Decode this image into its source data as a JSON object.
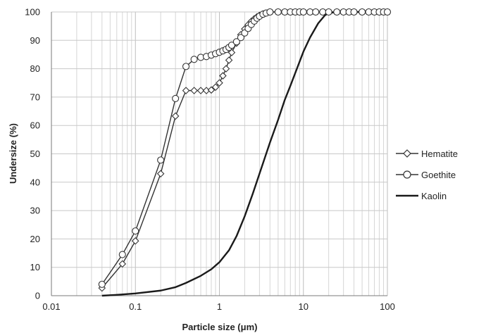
{
  "chart_data": {
    "type": "line",
    "title": "",
    "xlabel": "Particle size (μm)",
    "ylabel": "Undersize (%)",
    "x_scale": "log",
    "xlim": [
      0.01,
      100
    ],
    "ylim": [
      0,
      100
    ],
    "x_ticks": [
      "0.01",
      "0.1",
      "1",
      "10",
      "100"
    ],
    "y_ticks": [
      "0",
      "10",
      "20",
      "30",
      "40",
      "50",
      "60",
      "70",
      "80",
      "90",
      "100"
    ],
    "grid": true,
    "legend_position": "right",
    "series": [
      {
        "name": "Hematite",
        "marker": "diamond",
        "color": "#333333",
        "points": [
          [
            0.04,
            2.7
          ],
          [
            0.07,
            11.2
          ],
          [
            0.1,
            19.3
          ],
          [
            0.2,
            43.0
          ],
          [
            0.3,
            63.3
          ],
          [
            0.4,
            72.3
          ],
          [
            0.5,
            72.3
          ],
          [
            0.6,
            72.3
          ],
          [
            0.7,
            72.3
          ],
          [
            0.8,
            72.5
          ],
          [
            0.9,
            73.5
          ],
          [
            1.0,
            75.0
          ],
          [
            1.1,
            77.5
          ],
          [
            1.2,
            80.0
          ],
          [
            1.3,
            83.0
          ],
          [
            1.4,
            85.7
          ],
          [
            1.6,
            89.0
          ],
          [
            1.8,
            92.0
          ],
          [
            2.0,
            94.0
          ],
          [
            2.2,
            95.5
          ],
          [
            2.4,
            96.7
          ],
          [
            2.6,
            97.6
          ],
          [
            2.8,
            98.3
          ],
          [
            3.0,
            98.8
          ],
          [
            3.3,
            99.3
          ],
          [
            3.6,
            99.6
          ],
          [
            4,
            100
          ],
          [
            5,
            100
          ],
          [
            6,
            100
          ],
          [
            7,
            100
          ],
          [
            8,
            100
          ],
          [
            9,
            100
          ],
          [
            10,
            100
          ],
          [
            12,
            100
          ],
          [
            14,
            100
          ],
          [
            17,
            100
          ],
          [
            20,
            100
          ],
          [
            25,
            100
          ],
          [
            30,
            100
          ],
          [
            35,
            100
          ],
          [
            40,
            100
          ],
          [
            50,
            100
          ],
          [
            60,
            100
          ],
          [
            70,
            100
          ],
          [
            80,
            100
          ],
          [
            90,
            100
          ],
          [
            100,
            100
          ]
        ]
      },
      {
        "name": "Goethite",
        "marker": "circle",
        "color": "#333333",
        "points": [
          [
            0.04,
            4.0
          ],
          [
            0.07,
            14.5
          ],
          [
            0.1,
            22.8
          ],
          [
            0.2,
            47.8
          ],
          [
            0.3,
            69.5
          ],
          [
            0.4,
            80.8
          ],
          [
            0.5,
            83.3
          ],
          [
            0.6,
            84.0
          ],
          [
            0.7,
            84.3
          ],
          [
            0.8,
            84.8
          ],
          [
            0.9,
            85.3
          ],
          [
            1.0,
            85.8
          ],
          [
            1.1,
            86.3
          ],
          [
            1.2,
            86.8
          ],
          [
            1.3,
            87.5
          ],
          [
            1.4,
            88.3
          ],
          [
            1.6,
            89.5
          ],
          [
            1.8,
            91.0
          ],
          [
            2.0,
            92.6
          ],
          [
            2.2,
            94.2
          ],
          [
            2.4,
            95.6
          ],
          [
            2.6,
            96.8
          ],
          [
            2.8,
            97.8
          ],
          [
            3.0,
            98.5
          ],
          [
            3.3,
            99.2
          ],
          [
            3.6,
            99.6
          ],
          [
            4,
            100
          ],
          [
            5,
            100
          ],
          [
            6,
            100
          ],
          [
            7,
            100
          ],
          [
            8,
            100
          ],
          [
            9,
            100
          ],
          [
            10,
            100
          ],
          [
            12,
            100
          ],
          [
            14,
            100
          ],
          [
            17,
            100
          ],
          [
            20,
            100
          ],
          [
            25,
            100
          ],
          [
            30,
            100
          ],
          [
            35,
            100
          ],
          [
            40,
            100
          ],
          [
            50,
            100
          ],
          [
            60,
            100
          ],
          [
            70,
            100
          ],
          [
            80,
            100
          ],
          [
            90,
            100
          ],
          [
            100,
            100
          ]
        ]
      },
      {
        "name": "Kaolin",
        "marker": "none",
        "color": "#1a1a1a",
        "points": [
          [
            0.04,
            0.0
          ],
          [
            0.06,
            0.3
          ],
          [
            0.1,
            0.8
          ],
          [
            0.2,
            1.8
          ],
          [
            0.3,
            3.0
          ],
          [
            0.4,
            4.5
          ],
          [
            0.6,
            7.0
          ],
          [
            0.8,
            9.3
          ],
          [
            1.0,
            11.8
          ],
          [
            1.3,
            16.0
          ],
          [
            1.6,
            21.0
          ],
          [
            2.0,
            28.0
          ],
          [
            2.5,
            36.0
          ],
          [
            3.0,
            43.0
          ],
          [
            4.0,
            54.0
          ],
          [
            5.0,
            62.0
          ],
          [
            6.0,
            69.0
          ],
          [
            7.0,
            74.0
          ],
          [
            8.0,
            78.5
          ],
          [
            10.0,
            86.0
          ],
          [
            12.0,
            91.0
          ],
          [
            15.0,
            96.0
          ],
          [
            18.0,
            98.8
          ],
          [
            20.0,
            99.6
          ],
          [
            25,
            100
          ],
          [
            30,
            100
          ],
          [
            50,
            100
          ],
          [
            100,
            100
          ]
        ]
      }
    ]
  }
}
